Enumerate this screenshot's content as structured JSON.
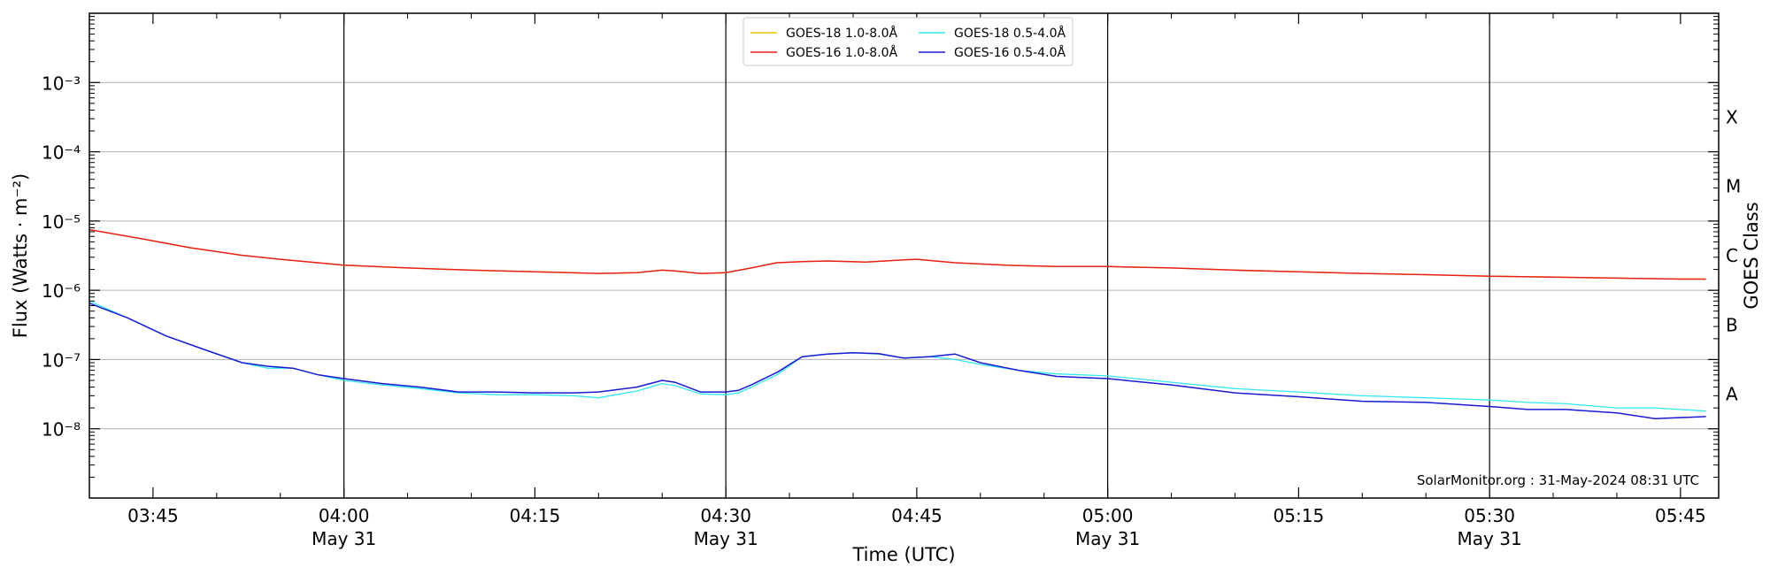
{
  "chart_data": {
    "type": "line",
    "title": "",
    "xlabel": "Time (UTC)",
    "ylabel": "Flux (Watts · m⁻²)",
    "ylabel_right": "GOES Class",
    "yscale": "log",
    "ylim": [
      1e-09,
      0.01
    ],
    "xlim_minutes": [
      220,
      348
    ],
    "grid": "horizontal",
    "legend_position": "top-center",
    "credit": "SolarMonitor.org : 31-May-2024 08:31 UTC",
    "x_ticks": [
      {
        "m": 225,
        "time": "03:45",
        "date": ""
      },
      {
        "m": 240,
        "time": "04:00",
        "date": "May 31"
      },
      {
        "m": 255,
        "time": "04:15",
        "date": ""
      },
      {
        "m": 270,
        "time": "04:30",
        "date": "May 31"
      },
      {
        "m": 285,
        "time": "04:45",
        "date": ""
      },
      {
        "m": 300,
        "time": "05:00",
        "date": "May 31"
      },
      {
        "m": 315,
        "time": "05:15",
        "date": ""
      },
      {
        "m": 330,
        "time": "05:30",
        "date": "May 31"
      },
      {
        "m": 345,
        "time": "05:45",
        "date": ""
      }
    ],
    "vlines": [
      240,
      270,
      300,
      330
    ],
    "y_ticks": [
      {
        "exp": -3,
        "label": "10⁻³"
      },
      {
        "exp": -4,
        "label": "10⁻⁴"
      },
      {
        "exp": -5,
        "label": "10⁻⁵"
      },
      {
        "exp": -6,
        "label": "10⁻⁶"
      },
      {
        "exp": -7,
        "label": "10⁻⁷"
      },
      {
        "exp": -8,
        "label": "10⁻⁸"
      }
    ],
    "goes_classes": [
      {
        "label": "X",
        "exp": -3.5
      },
      {
        "label": "M",
        "exp": -4.5
      },
      {
        "label": "C",
        "exp": -5.5
      },
      {
        "label": "B",
        "exp": -6.5
      },
      {
        "label": "A",
        "exp": -7.5
      }
    ],
    "series": [
      {
        "name": "GOES-18 1.0-8.0Å",
        "color": "#f0c800",
        "width": 1.3,
        "points": [
          [
            220,
            7.5e-06
          ],
          [
            224,
            5.6e-06
          ],
          [
            228,
            4.1e-06
          ],
          [
            232,
            3.2e-06
          ],
          [
            235,
            2.8e-06
          ],
          [
            240,
            2.3e-06
          ],
          [
            245,
            2.1e-06
          ],
          [
            250,
            1.95e-06
          ],
          [
            255,
            1.85e-06
          ],
          [
            260,
            1.75e-06
          ],
          [
            263,
            1.8e-06
          ],
          [
            265,
            1.95e-06
          ],
          [
            266,
            1.9e-06
          ],
          [
            268,
            1.75e-06
          ],
          [
            270,
            1.8e-06
          ],
          [
            272,
            2.1e-06
          ],
          [
            274,
            2.5e-06
          ],
          [
            276,
            2.6e-06
          ],
          [
            278,
            2.65e-06
          ],
          [
            281,
            2.55e-06
          ],
          [
            284,
            2.75e-06
          ],
          [
            285,
            2.8e-06
          ],
          [
            288,
            2.5e-06
          ],
          [
            292,
            2.3e-06
          ],
          [
            296,
            2.2e-06
          ],
          [
            300,
            2.2e-06
          ],
          [
            305,
            2.1e-06
          ],
          [
            310,
            1.95e-06
          ],
          [
            315,
            1.85e-06
          ],
          [
            320,
            1.75e-06
          ],
          [
            325,
            1.68e-06
          ],
          [
            330,
            1.6e-06
          ],
          [
            335,
            1.55e-06
          ],
          [
            340,
            1.5e-06
          ],
          [
            345,
            1.45e-06
          ],
          [
            347,
            1.45e-06
          ]
        ]
      },
      {
        "name": "GOES-18 0.5-4.0Å",
        "color": "#33e8ee",
        "width": 1.3,
        "points": [
          [
            220,
            7e-07
          ],
          [
            223,
            4e-07
          ],
          [
            226,
            2.2e-07
          ],
          [
            229,
            1.4e-07
          ],
          [
            232,
            9e-08
          ],
          [
            234,
            7.5e-08
          ],
          [
            236,
            7.5e-08
          ],
          [
            238,
            6e-08
          ],
          [
            240,
            5e-08
          ],
          [
            243,
            4.3e-08
          ],
          [
            246,
            3.8e-08
          ],
          [
            249,
            3.3e-08
          ],
          [
            252,
            3.1e-08
          ],
          [
            255,
            3.1e-08
          ],
          [
            258,
            3e-08
          ],
          [
            260,
            2.8e-08
          ],
          [
            263,
            3.5e-08
          ],
          [
            265,
            4.5e-08
          ],
          [
            266,
            4.2e-08
          ],
          [
            268,
            3.2e-08
          ],
          [
            270,
            3.1e-08
          ],
          [
            271,
            3.3e-08
          ],
          [
            272,
            4e-08
          ],
          [
            274,
            6e-08
          ],
          [
            276,
            1.1e-07
          ],
          [
            278,
            1.2e-07
          ],
          [
            280,
            1.25e-07
          ],
          [
            282,
            1.2e-07
          ],
          [
            284,
            1.05e-07
          ],
          [
            286,
            1.1e-07
          ],
          [
            288,
            1e-07
          ],
          [
            290,
            8.5e-08
          ],
          [
            293,
            7e-08
          ],
          [
            296,
            6.2e-08
          ],
          [
            300,
            5.8e-08
          ],
          [
            305,
            4.7e-08
          ],
          [
            310,
            3.8e-08
          ],
          [
            315,
            3.4e-08
          ],
          [
            320,
            3e-08
          ],
          [
            325,
            2.8e-08
          ],
          [
            330,
            2.6e-08
          ],
          [
            333,
            2.4e-08
          ],
          [
            336,
            2.3e-08
          ],
          [
            340,
            2e-08
          ],
          [
            343,
            2e-08
          ],
          [
            347,
            1.8e-08
          ]
        ]
      },
      {
        "name": "GOES-16 1.0-8.0Å",
        "color": "#e8201a",
        "width": 1.5,
        "points": [
          [
            220,
            7.5e-06
          ],
          [
            224,
            5.6e-06
          ],
          [
            228,
            4.1e-06
          ],
          [
            232,
            3.2e-06
          ],
          [
            235,
            2.8e-06
          ],
          [
            240,
            2.3e-06
          ],
          [
            245,
            2.1e-06
          ],
          [
            250,
            1.95e-06
          ],
          [
            255,
            1.85e-06
          ],
          [
            260,
            1.75e-06
          ],
          [
            263,
            1.8e-06
          ],
          [
            265,
            1.95e-06
          ],
          [
            266,
            1.9e-06
          ],
          [
            268,
            1.75e-06
          ],
          [
            270,
            1.8e-06
          ],
          [
            272,
            2.1e-06
          ],
          [
            274,
            2.5e-06
          ],
          [
            276,
            2.6e-06
          ],
          [
            278,
            2.65e-06
          ],
          [
            281,
            2.55e-06
          ],
          [
            284,
            2.75e-06
          ],
          [
            285,
            2.8e-06
          ],
          [
            288,
            2.5e-06
          ],
          [
            292,
            2.3e-06
          ],
          [
            296,
            2.2e-06
          ],
          [
            300,
            2.2e-06
          ],
          [
            305,
            2.1e-06
          ],
          [
            310,
            1.95e-06
          ],
          [
            315,
            1.85e-06
          ],
          [
            320,
            1.75e-06
          ],
          [
            325,
            1.68e-06
          ],
          [
            330,
            1.6e-06
          ],
          [
            335,
            1.55e-06
          ],
          [
            340,
            1.5e-06
          ],
          [
            345,
            1.45e-06
          ],
          [
            347,
            1.45e-06
          ]
        ]
      },
      {
        "name": "GOES-16 0.5-4.0Å",
        "color": "#1a1ad0",
        "width": 1.5,
        "points": [
          [
            220,
            6.5e-07
          ],
          [
            223,
            4e-07
          ],
          [
            226,
            2.2e-07
          ],
          [
            229,
            1.4e-07
          ],
          [
            232,
            9e-08
          ],
          [
            234,
            8e-08
          ],
          [
            236,
            7.5e-08
          ],
          [
            238,
            6e-08
          ],
          [
            240,
            5.3e-08
          ],
          [
            243,
            4.5e-08
          ],
          [
            246,
            4e-08
          ],
          [
            249,
            3.4e-08
          ],
          [
            252,
            3.4e-08
          ],
          [
            255,
            3.3e-08
          ],
          [
            258,
            3.3e-08
          ],
          [
            260,
            3.4e-08
          ],
          [
            263,
            4e-08
          ],
          [
            265,
            5e-08
          ],
          [
            266,
            4.7e-08
          ],
          [
            268,
            3.4e-08
          ],
          [
            270,
            3.4e-08
          ],
          [
            271,
            3.6e-08
          ],
          [
            272,
            4.3e-08
          ],
          [
            274,
            6.5e-08
          ],
          [
            276,
            1.1e-07
          ],
          [
            278,
            1.2e-07
          ],
          [
            280,
            1.25e-07
          ],
          [
            282,
            1.22e-07
          ],
          [
            284,
            1.05e-07
          ],
          [
            286,
            1.1e-07
          ],
          [
            288,
            1.2e-07
          ],
          [
            290,
            9e-08
          ],
          [
            293,
            7e-08
          ],
          [
            296,
            5.7e-08
          ],
          [
            300,
            5.3e-08
          ],
          [
            305,
            4.3e-08
          ],
          [
            310,
            3.3e-08
          ],
          [
            315,
            2.9e-08
          ],
          [
            320,
            2.5e-08
          ],
          [
            325,
            2.4e-08
          ],
          [
            330,
            2.1e-08
          ],
          [
            333,
            1.9e-08
          ],
          [
            336,
            1.9e-08
          ],
          [
            340,
            1.7e-08
          ],
          [
            343,
            1.4e-08
          ],
          [
            347,
            1.5e-08
          ]
        ]
      }
    ],
    "legend_order": [
      0,
      1,
      2,
      3
    ]
  }
}
